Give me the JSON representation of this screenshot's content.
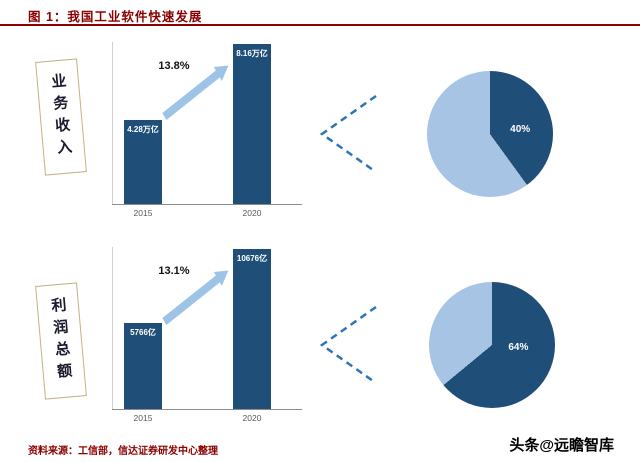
{
  "header": {
    "title": "图 1：我国工业软件快速发展"
  },
  "chart_data": [
    {
      "type": "bar",
      "panel": "业务收入",
      "categories": [
        "2015",
        "2020"
      ],
      "values": [
        4.28,
        8.16
      ],
      "value_labels": [
        "4.28万亿",
        "8.16万亿"
      ],
      "growth_label": "13.8%",
      "unit": "万亿",
      "ylim": [
        0,
        8.16
      ],
      "grid": false,
      "legend": "none"
    },
    {
      "type": "pie",
      "panel": "业务收入",
      "slices": [
        {
          "name": "highlight",
          "pct": 40,
          "label": "40%",
          "color": "#1F4E79"
        },
        {
          "name": "other",
          "pct": 60,
          "label": "",
          "color": "#A7C4E4"
        }
      ]
    },
    {
      "type": "bar",
      "panel": "利润总额",
      "categories": [
        "2015",
        "2020"
      ],
      "values": [
        5766,
        10676
      ],
      "value_labels": [
        "5766亿",
        "10676亿"
      ],
      "growth_label": "13.1%",
      "unit": "亿",
      "ylim": [
        0,
        10676
      ],
      "grid": false,
      "legend": "none"
    },
    {
      "type": "pie",
      "panel": "利润总额",
      "slices": [
        {
          "name": "highlight",
          "pct": 64,
          "label": "64%",
          "color": "#1F4E79"
        },
        {
          "name": "other",
          "pct": 36,
          "label": "",
          "color": "#A7C4E4"
        }
      ]
    }
  ],
  "footer": {
    "source": "资料来源：工信部，信达证券研发中心整理",
    "watermark": "头条@远瞻智库"
  },
  "colors": {
    "dark_blue": "#1F4E79",
    "light_blue": "#A7C4E4",
    "arrow_blue": "#9DC3E6",
    "chevron_blue": "#2E74B5",
    "accent_red": "#8B0000"
  }
}
